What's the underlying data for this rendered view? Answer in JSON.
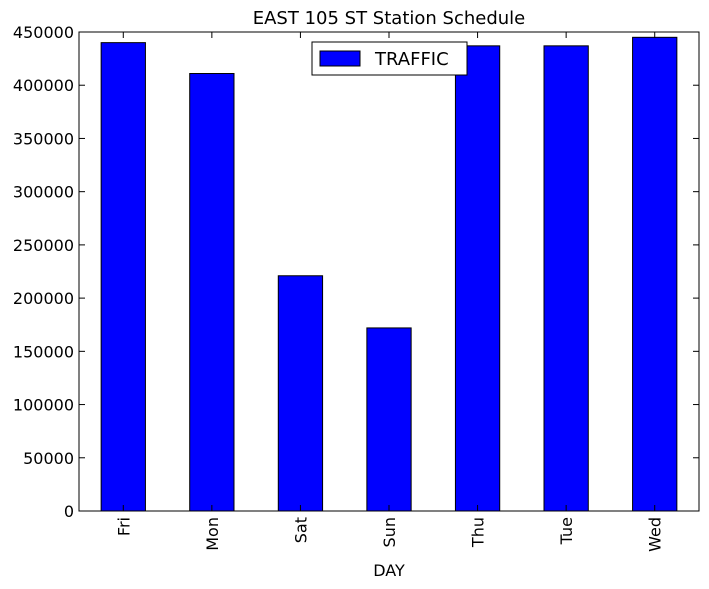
{
  "chart_data": {
    "type": "bar",
    "title": "EAST 105 ST Station Schedule",
    "xlabel": "DAY",
    "ylabel": "",
    "categories": [
      "Fri",
      "Mon",
      "Sat",
      "Sun",
      "Thu",
      "Tue",
      "Wed"
    ],
    "series": [
      {
        "name": "TRAFFIC",
        "values": [
          440000,
          411000,
          221000,
          172000,
          437000,
          437000,
          445000
        ],
        "color": "#0000ff"
      }
    ],
    "ylim": [
      0,
      450000
    ],
    "yticks": [
      "0",
      "50000",
      "100000",
      "150000",
      "200000",
      "250000",
      "300000",
      "350000",
      "400000",
      "450000"
    ],
    "grid": false,
    "legend_position": "top-center"
  }
}
